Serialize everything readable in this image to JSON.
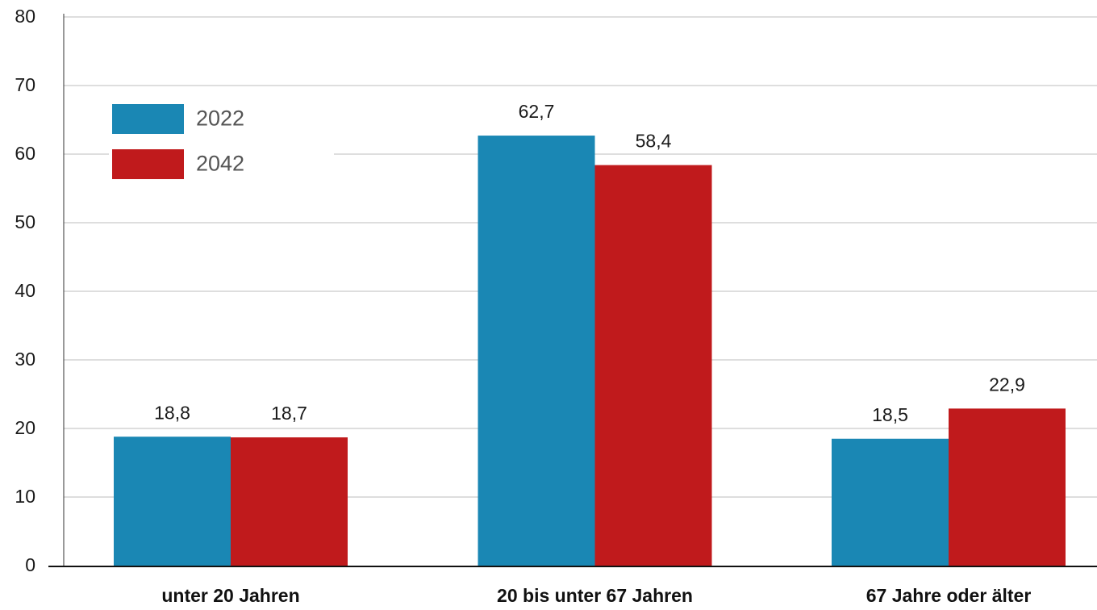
{
  "chart_data": {
    "type": "bar",
    "title": "",
    "xlabel": "",
    "ylabel": "",
    "categories": [
      "unter 20 Jahren",
      "20 bis unter 67 Jahren",
      "67 Jahre oder älter"
    ],
    "series": [
      {
        "name": "2022",
        "values": [
          18.8,
          62.7,
          18.5
        ],
        "labels": [
          "18,8",
          "62,7",
          "18,5"
        ],
        "color": "#1a87b4"
      },
      {
        "name": "2042",
        "values": [
          18.7,
          58.4,
          22.9
        ],
        "labels": [
          "18,7",
          "58,4",
          "22,9"
        ],
        "color": "#c01a1c"
      }
    ],
    "ylim": [
      0,
      80
    ],
    "yticks": [
      0,
      10,
      20,
      30,
      40,
      50,
      60,
      70,
      80
    ],
    "grid": true,
    "legend_position": "top-left"
  }
}
